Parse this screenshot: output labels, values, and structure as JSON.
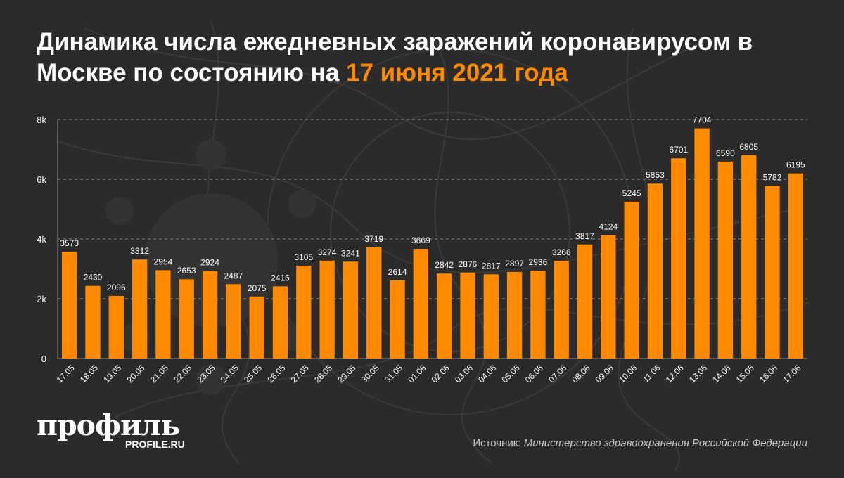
{
  "header": {
    "title_main": "Динамика числа ежедневных заражений коронавирусом в Москве по состоянию на ",
    "title_highlight": "17 июня 2021 года"
  },
  "colors": {
    "background": "#2b2b2b",
    "bar": "#ff8a00",
    "highlight": "#ff8a00",
    "text": "#ffffff"
  },
  "chart_data": {
    "type": "bar",
    "categories": [
      "17.05",
      "18.05",
      "19.05",
      "20.05",
      "21.05",
      "22.05",
      "23.05",
      "24.05",
      "25.05",
      "26.05",
      "27.05",
      "28.05",
      "29.05",
      "30.05",
      "31.05",
      "01.06",
      "02.06",
      "03.06",
      "04.06",
      "05.06",
      "06.06",
      "07.06",
      "08.06",
      "09.06",
      "10.06",
      "11.06",
      "12.06",
      "13.06",
      "14.06",
      "15.06",
      "16.06",
      "17.06"
    ],
    "values": [
      3573,
      2430,
      2096,
      3312,
      2954,
      2653,
      2924,
      2487,
      2075,
      2416,
      3105,
      3274,
      3241,
      3719,
      2614,
      3669,
      2842,
      2876,
      2817,
      2897,
      2936,
      3266,
      3817,
      4124,
      5245,
      5853,
      6701,
      7704,
      6590,
      6805,
      5782,
      6195
    ],
    "ylim": [
      0,
      8000
    ],
    "yticks": [
      0,
      2000,
      4000,
      6000,
      8000
    ],
    "ytick_labels": [
      "0",
      "2k",
      "4k",
      "6k",
      "8k"
    ],
    "grid": true,
    "data_labels": true,
    "xlabel": "",
    "ylabel": ""
  },
  "footer": {
    "logo": "профиль",
    "logo_sub": "PROFILE.RU",
    "source_label": "Источник: ",
    "source_value": "Министерство здравоохранения Российской Федерации"
  }
}
